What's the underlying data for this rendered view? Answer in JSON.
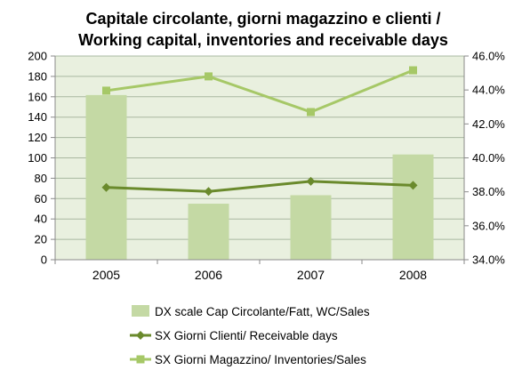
{
  "chart_data": {
    "type": "bar",
    "title_lines": [
      "Capitale circolante, giorni magazzino e clienti /",
      "Working capital, inventories and receivable days"
    ],
    "categories": [
      "2005",
      "2006",
      "2007",
      "2008"
    ],
    "ylim_left": [
      0,
      200
    ],
    "ylim_right": [
      34.0,
      46.0
    ],
    "left_ticks": [
      "0",
      "20",
      "40",
      "60",
      "80",
      "100",
      "120",
      "140",
      "160",
      "180",
      "200"
    ],
    "right_ticks": [
      "34.0%",
      "36.0%",
      "38.0%",
      "40.0%",
      "42.0%",
      "44.0%",
      "46.0%"
    ],
    "grid": "horizontal",
    "legend_position": "bottom",
    "series": [
      {
        "name": "DX scale Cap Circolante/Fatt, WC/Sales",
        "type": "bar",
        "axis": "right",
        "values": [
          43.7,
          37.3,
          37.8,
          40.2
        ],
        "color": "#c4d9a4"
      },
      {
        "name": "SX Giorni Clienti/ Receivable days",
        "type": "line",
        "marker": "diamond",
        "axis": "left",
        "values": [
          71,
          67,
          77,
          73
        ],
        "color": "#6a8a2c"
      },
      {
        "name": "SX Giorni Magazzino/ Inventories/Sales",
        "type": "line",
        "marker": "square",
        "axis": "left",
        "values": [
          166,
          180,
          145,
          186
        ],
        "color": "#a6c867"
      }
    ],
    "plot_background": "#e9f0df",
    "gridline_color": "#a9b8a0"
  }
}
